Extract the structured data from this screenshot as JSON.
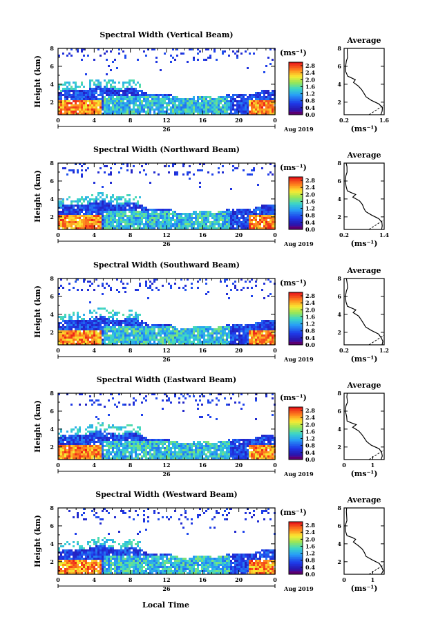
{
  "figure": {
    "xlabel": "Local Time",
    "ylabel": "Height (km)",
    "date_label": "Aug 2019",
    "day_label": "26",
    "cb_unit": "(ms⁻¹)",
    "avg_title": "Average",
    "avg_xlabel": "(ms⁻¹)"
  },
  "chart_data": [
    {
      "type": "heatmap",
      "title": "Spectral Width (Vertical Beam)",
      "x_ticks": [
        "0",
        "4",
        "8",
        "12",
        "16",
        "20",
        "0"
      ],
      "xlim": [
        0,
        24
      ],
      "y_ticks": [
        "2",
        "4",
        "6",
        "8"
      ],
      "ylim": [
        0.6,
        8
      ],
      "colorbar": {
        "ticks": [
          "0.0",
          "0.4",
          "0.8",
          "1.2",
          "1.6",
          "2.0",
          "2.4",
          "2.8"
        ],
        "range": [
          0,
          3.0
        ]
      },
      "average": {
        "x_ticks": [
          "0.2",
          "1.6"
        ],
        "xlim": [
          0.2,
          1.6
        ],
        "y_ticks": [
          "2",
          "4",
          "6",
          "8"
        ],
        "ylim": [
          0.6,
          8
        ]
      }
    },
    {
      "type": "heatmap",
      "title": "Spectral Width (Northward Beam)",
      "x_ticks": [
        "0",
        "4",
        "8",
        "12",
        "16",
        "20",
        "0"
      ],
      "xlim": [
        0,
        24
      ],
      "y_ticks": [
        "2",
        "4",
        "6",
        "8"
      ],
      "ylim": [
        0.6,
        8
      ],
      "colorbar": {
        "ticks": [
          "0.0",
          "0.4",
          "0.8",
          "1.2",
          "1.6",
          "2.0",
          "2.4",
          "2.8"
        ],
        "range": [
          0,
          3.0
        ]
      },
      "average": {
        "x_ticks": [
          "0.2",
          "1.4"
        ],
        "xlim": [
          0.2,
          1.4
        ],
        "y_ticks": [
          "2",
          "4",
          "6",
          "8"
        ],
        "ylim": [
          0.6,
          8
        ]
      }
    },
    {
      "type": "heatmap",
      "title": "Spectral Width (Southward Beam)",
      "x_ticks": [
        "0",
        "4",
        "8",
        "12",
        "16",
        "20",
        "0"
      ],
      "xlim": [
        0,
        24
      ],
      "y_ticks": [
        "2",
        "4",
        "6",
        "8"
      ],
      "ylim": [
        0.6,
        8
      ],
      "colorbar": {
        "ticks": [
          "0.0",
          "0.4",
          "0.8",
          "1.2",
          "1.6",
          "2.0",
          "2.4",
          "2.8"
        ],
        "range": [
          0,
          3.0
        ]
      },
      "average": {
        "x_ticks": [
          "0.2",
          "1.2"
        ],
        "xlim": [
          0.2,
          1.2
        ],
        "y_ticks": [
          "2",
          "4",
          "6",
          "8"
        ],
        "ylim": [
          0.6,
          8
        ]
      }
    },
    {
      "type": "heatmap",
      "title": "Spectral Width (Eastward Beam)",
      "x_ticks": [
        "0",
        "4",
        "8",
        "12",
        "16",
        "20",
        "0"
      ],
      "xlim": [
        0,
        24
      ],
      "y_ticks": [
        "2",
        "4",
        "6",
        "8"
      ],
      "ylim": [
        0.6,
        8
      ],
      "colorbar": {
        "ticks": [
          "0.0",
          "0.4",
          "0.8",
          "1.2",
          "1.6",
          "2.0",
          "2.4",
          "2.8"
        ],
        "range": [
          0,
          3.0
        ]
      },
      "average": {
        "x_ticks": [
          "0",
          "1"
        ],
        "xlim": [
          0,
          1.4
        ],
        "y_ticks": [
          "2",
          "4",
          "6",
          "8"
        ],
        "ylim": [
          0.6,
          8
        ]
      }
    },
    {
      "type": "heatmap",
      "title": "Spectral Width (Westward Beam)",
      "x_ticks": [
        "0",
        "4",
        "8",
        "12",
        "16",
        "20",
        "0"
      ],
      "xlim": [
        0,
        24
      ],
      "y_ticks": [
        "2",
        "4",
        "6",
        "8"
      ],
      "ylim": [
        0.6,
        8
      ],
      "colorbar": {
        "ticks": [
          "0.0",
          "0.4",
          "0.8",
          "1.2",
          "1.6",
          "2.0",
          "2.4",
          "2.8"
        ],
        "range": [
          0,
          3.0
        ]
      },
      "average": {
        "x_ticks": [
          "0",
          "1"
        ],
        "xlim": [
          0,
          1.4
        ],
        "y_ticks": [
          "2",
          "4",
          "6",
          "8"
        ],
        "ylim": [
          0.6,
          8
        ]
      }
    }
  ]
}
